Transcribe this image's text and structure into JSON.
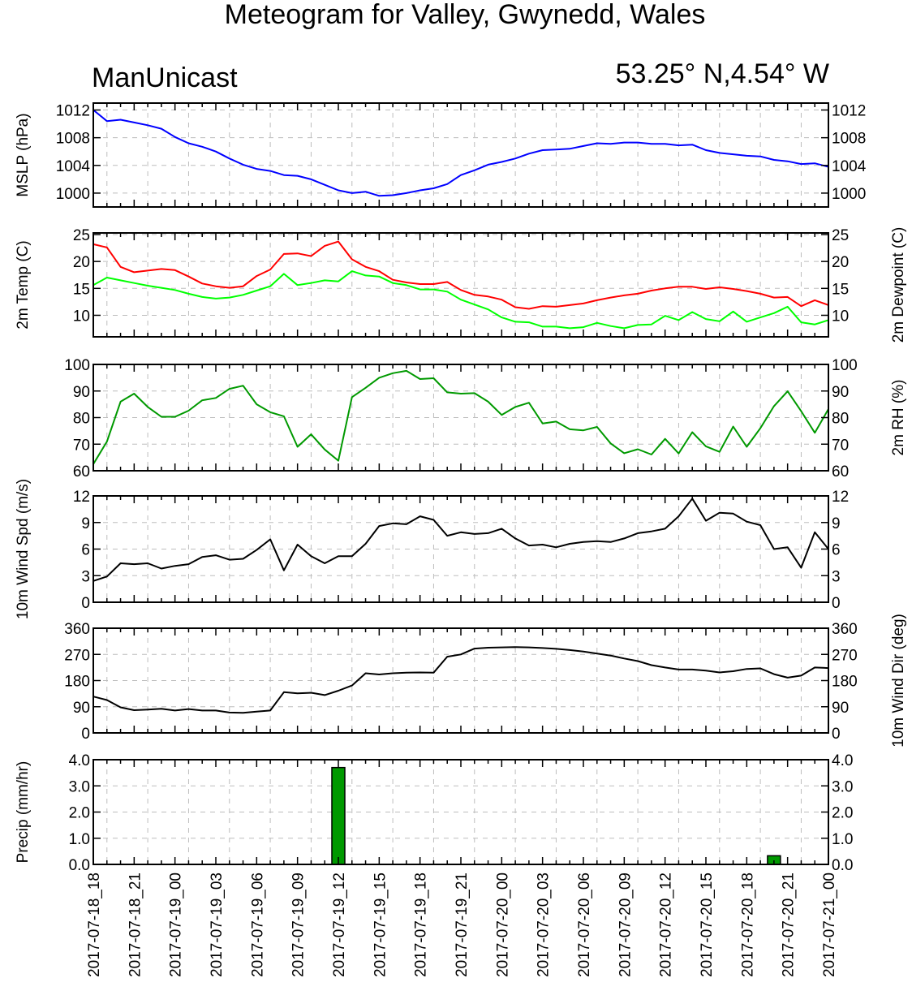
{
  "title": "Meteogram for Valley, Gwynedd, Wales",
  "model": "ManUnicast",
  "location": "53.25° N,4.54° W",
  "colors": {
    "mslp": "#0000ff",
    "temp": "#ff0000",
    "dew": "#00ff00",
    "rh": "#009900",
    "wind": "#000000",
    "precip_fill": "#009900"
  },
  "chart_data": [
    {
      "type": "line",
      "id": "mslp",
      "ylabel": "MSLP (hPa)",
      "ylim": [
        998,
        1013
      ],
      "yticks": [
        1000,
        1004,
        1008,
        1012
      ],
      "ytick_labels": [
        "1000",
        "1004",
        "1008",
        "1012"
      ],
      "series": [
        {
          "values": [
            1012,
            1010.4,
            1010.6,
            1010.2,
            1009.8,
            1009.3,
            1008.1,
            1007.2,
            1006.7,
            1006,
            1005,
            1004.1,
            1003.5,
            1003.2,
            1002.6,
            1002.5,
            1002,
            1001.2,
            1000.4,
            1000,
            1000.2,
            999.6,
            999.7,
            1000,
            1000.4,
            1000.7,
            1001.3,
            1002.6,
            1003.3,
            1004.1,
            1004.5,
            1005,
            1005.7,
            1006.2,
            1006.3,
            1006.4,
            1006.8,
            1007.2,
            1007.1,
            1007.3,
            1007.3,
            1007.1,
            1007.1,
            1006.9,
            1007,
            1006.2,
            1005.8,
            1005.6,
            1005.4,
            1005.3,
            1004.8,
            1004.6,
            1004.2,
            1004.3,
            1003.8
          ]
        }
      ]
    },
    {
      "type": "line",
      "id": "temp",
      "ylabel": "2m Temp (C)",
      "ylabel_right": "2m Dewpoint (C)",
      "ylim": [
        6,
        25.3
      ],
      "yticks": [
        10,
        15,
        20,
        25
      ],
      "ytick_labels": [
        "10",
        "15",
        "20",
        "25"
      ],
      "series": [
        {
          "values": [
            23.2,
            22.6,
            19,
            18,
            18.3,
            18.6,
            18.4,
            17.2,
            15.9,
            15.4,
            15.1,
            15.4,
            17.3,
            18.5,
            21.4,
            21.5,
            21,
            22.9,
            23.7,
            20.4,
            19,
            18.2,
            16.6,
            16.1,
            15.8,
            15.8,
            16.2,
            14.7,
            13.8,
            13.5,
            12.9,
            11.5,
            11.2,
            11.7,
            11.6,
            11.9,
            12.2,
            12.8,
            13.3,
            13.7,
            14,
            14.6,
            15,
            15.3,
            15.3,
            14.9,
            15.2,
            14.9,
            14.5,
            14,
            13.3,
            13.4,
            11.7,
            12.8,
            11.9
          ]
        },
        {
          "values": [
            15.6,
            17,
            16.5,
            16,
            15.5,
            15.1,
            14.7,
            14,
            13.4,
            13.1,
            13.3,
            13.8,
            14.6,
            15.4,
            17.7,
            15.6,
            16,
            16.5,
            16.3,
            18.2,
            17.4,
            17.2,
            16,
            15.6,
            14.8,
            14.8,
            14.4,
            12.9,
            12,
            11.1,
            9.6,
            8.8,
            8.7,
            7.9,
            7.9,
            7.6,
            7.8,
            8.6,
            8,
            7.6,
            8.2,
            8.3,
            9.9,
            9.1,
            10.6,
            9.3,
            8.9,
            10.7,
            8.8,
            9.6,
            10.4,
            11.6,
            8.7,
            8.3,
            9.1
          ]
        }
      ]
    },
    {
      "type": "line",
      "id": "rh",
      "ylabel_right": "2m RH (%)",
      "ylim": [
        60,
        100
      ],
      "yticks": [
        60,
        70,
        80,
        90,
        100
      ],
      "ytick_labels": [
        "60",
        "70",
        "80",
        "90",
        "100"
      ],
      "series": [
        {
          "values": [
            62.5,
            71,
            86,
            89,
            84,
            80.3,
            80.3,
            82.6,
            86.5,
            87.4,
            90.8,
            92,
            85,
            82,
            80.5,
            69,
            73.7,
            68,
            63.8,
            87.7,
            91.2,
            95,
            96.7,
            97.6,
            94.5,
            94.8,
            89.5,
            89,
            89.2,
            86,
            81,
            84,
            85.6,
            77.8,
            78.5,
            75.6,
            75.2,
            76.5,
            70.3,
            66.6,
            68.1,
            66.1,
            72,
            66.5,
            74.5,
            69.2,
            67.1,
            76.6,
            69,
            76,
            84.3,
            89.9,
            82.4,
            74.3,
            83.2
          ]
        }
      ]
    },
    {
      "type": "line",
      "id": "wspd",
      "ylabel": "10m Wind Spd (m/s)",
      "ylim": [
        0,
        12
      ],
      "yticks": [
        0,
        3,
        6,
        9,
        12
      ],
      "ytick_labels": [
        "0",
        "3",
        "6",
        "9",
        "12"
      ],
      "series": [
        {
          "values": [
            2.4,
            2.9,
            4.4,
            4.3,
            4.4,
            3.8,
            4.1,
            4.3,
            5.1,
            5.3,
            4.8,
            4.9,
            5.9,
            7.1,
            3.6,
            6.5,
            5.2,
            4.4,
            5.2,
            5.2,
            6.6,
            8.6,
            8.9,
            8.8,
            9.7,
            9.3,
            7.5,
            7.9,
            7.7,
            7.8,
            8.3,
            7.2,
            6.4,
            6.5,
            6.2,
            6.6,
            6.8,
            6.9,
            6.8,
            7.2,
            7.8,
            8,
            8.3,
            9.7,
            11.7,
            9.2,
            10.1,
            10,
            9.1,
            8.7,
            6,
            6.2,
            3.9,
            7.9,
            6
          ]
        }
      ]
    },
    {
      "type": "line",
      "id": "wdir",
      "ylabel_right": "10m Wind Dir (deg)",
      "ylim": [
        0,
        360
      ],
      "yticks": [
        0,
        90,
        180,
        270,
        360
      ],
      "ytick_labels": [
        "0",
        "90",
        "180",
        "270",
        "360"
      ],
      "series": [
        {
          "values": [
            125,
            113,
            88,
            78,
            80,
            83,
            77,
            82,
            77,
            77,
            70,
            69,
            73,
            77,
            140,
            136,
            138,
            130,
            145,
            163,
            205,
            201,
            205,
            207,
            208,
            207,
            262,
            270,
            290,
            293,
            294,
            295,
            294,
            292,
            289,
            285,
            280,
            273,
            266,
            256,
            247,
            233,
            225,
            218,
            218,
            214,
            208,
            212,
            220,
            222,
            202,
            190,
            197,
            225,
            223
          ]
        }
      ]
    },
    {
      "type": "bar",
      "id": "precip",
      "ylabel": "Precip (mm/hr)",
      "ylim": [
        0,
        4
      ],
      "yticks": [
        0,
        1,
        2,
        3,
        4
      ],
      "ytick_labels": [
        "0.0",
        "1.0",
        "2.0",
        "3.0",
        "4.0"
      ],
      "bars": [
        {
          "index": 18,
          "value": 3.7
        },
        {
          "index": 50,
          "value": 0.33
        }
      ]
    }
  ],
  "x_labels": [
    "2017-07-18_18",
    "2017-07-18_21",
    "2017-07-19_00",
    "2017-07-19_03",
    "2017-07-19_06",
    "2017-07-19_09",
    "2017-07-19_12",
    "2017-07-19_15",
    "2017-07-19_18",
    "2017-07-19_21",
    "2017-07-20_00",
    "2017-07-20_03",
    "2017-07-20_06",
    "2017-07-20_09",
    "2017-07-20_12",
    "2017-07-20_15",
    "2017-07-20_18",
    "2017-07-20_21",
    "2017-07-21_00"
  ]
}
